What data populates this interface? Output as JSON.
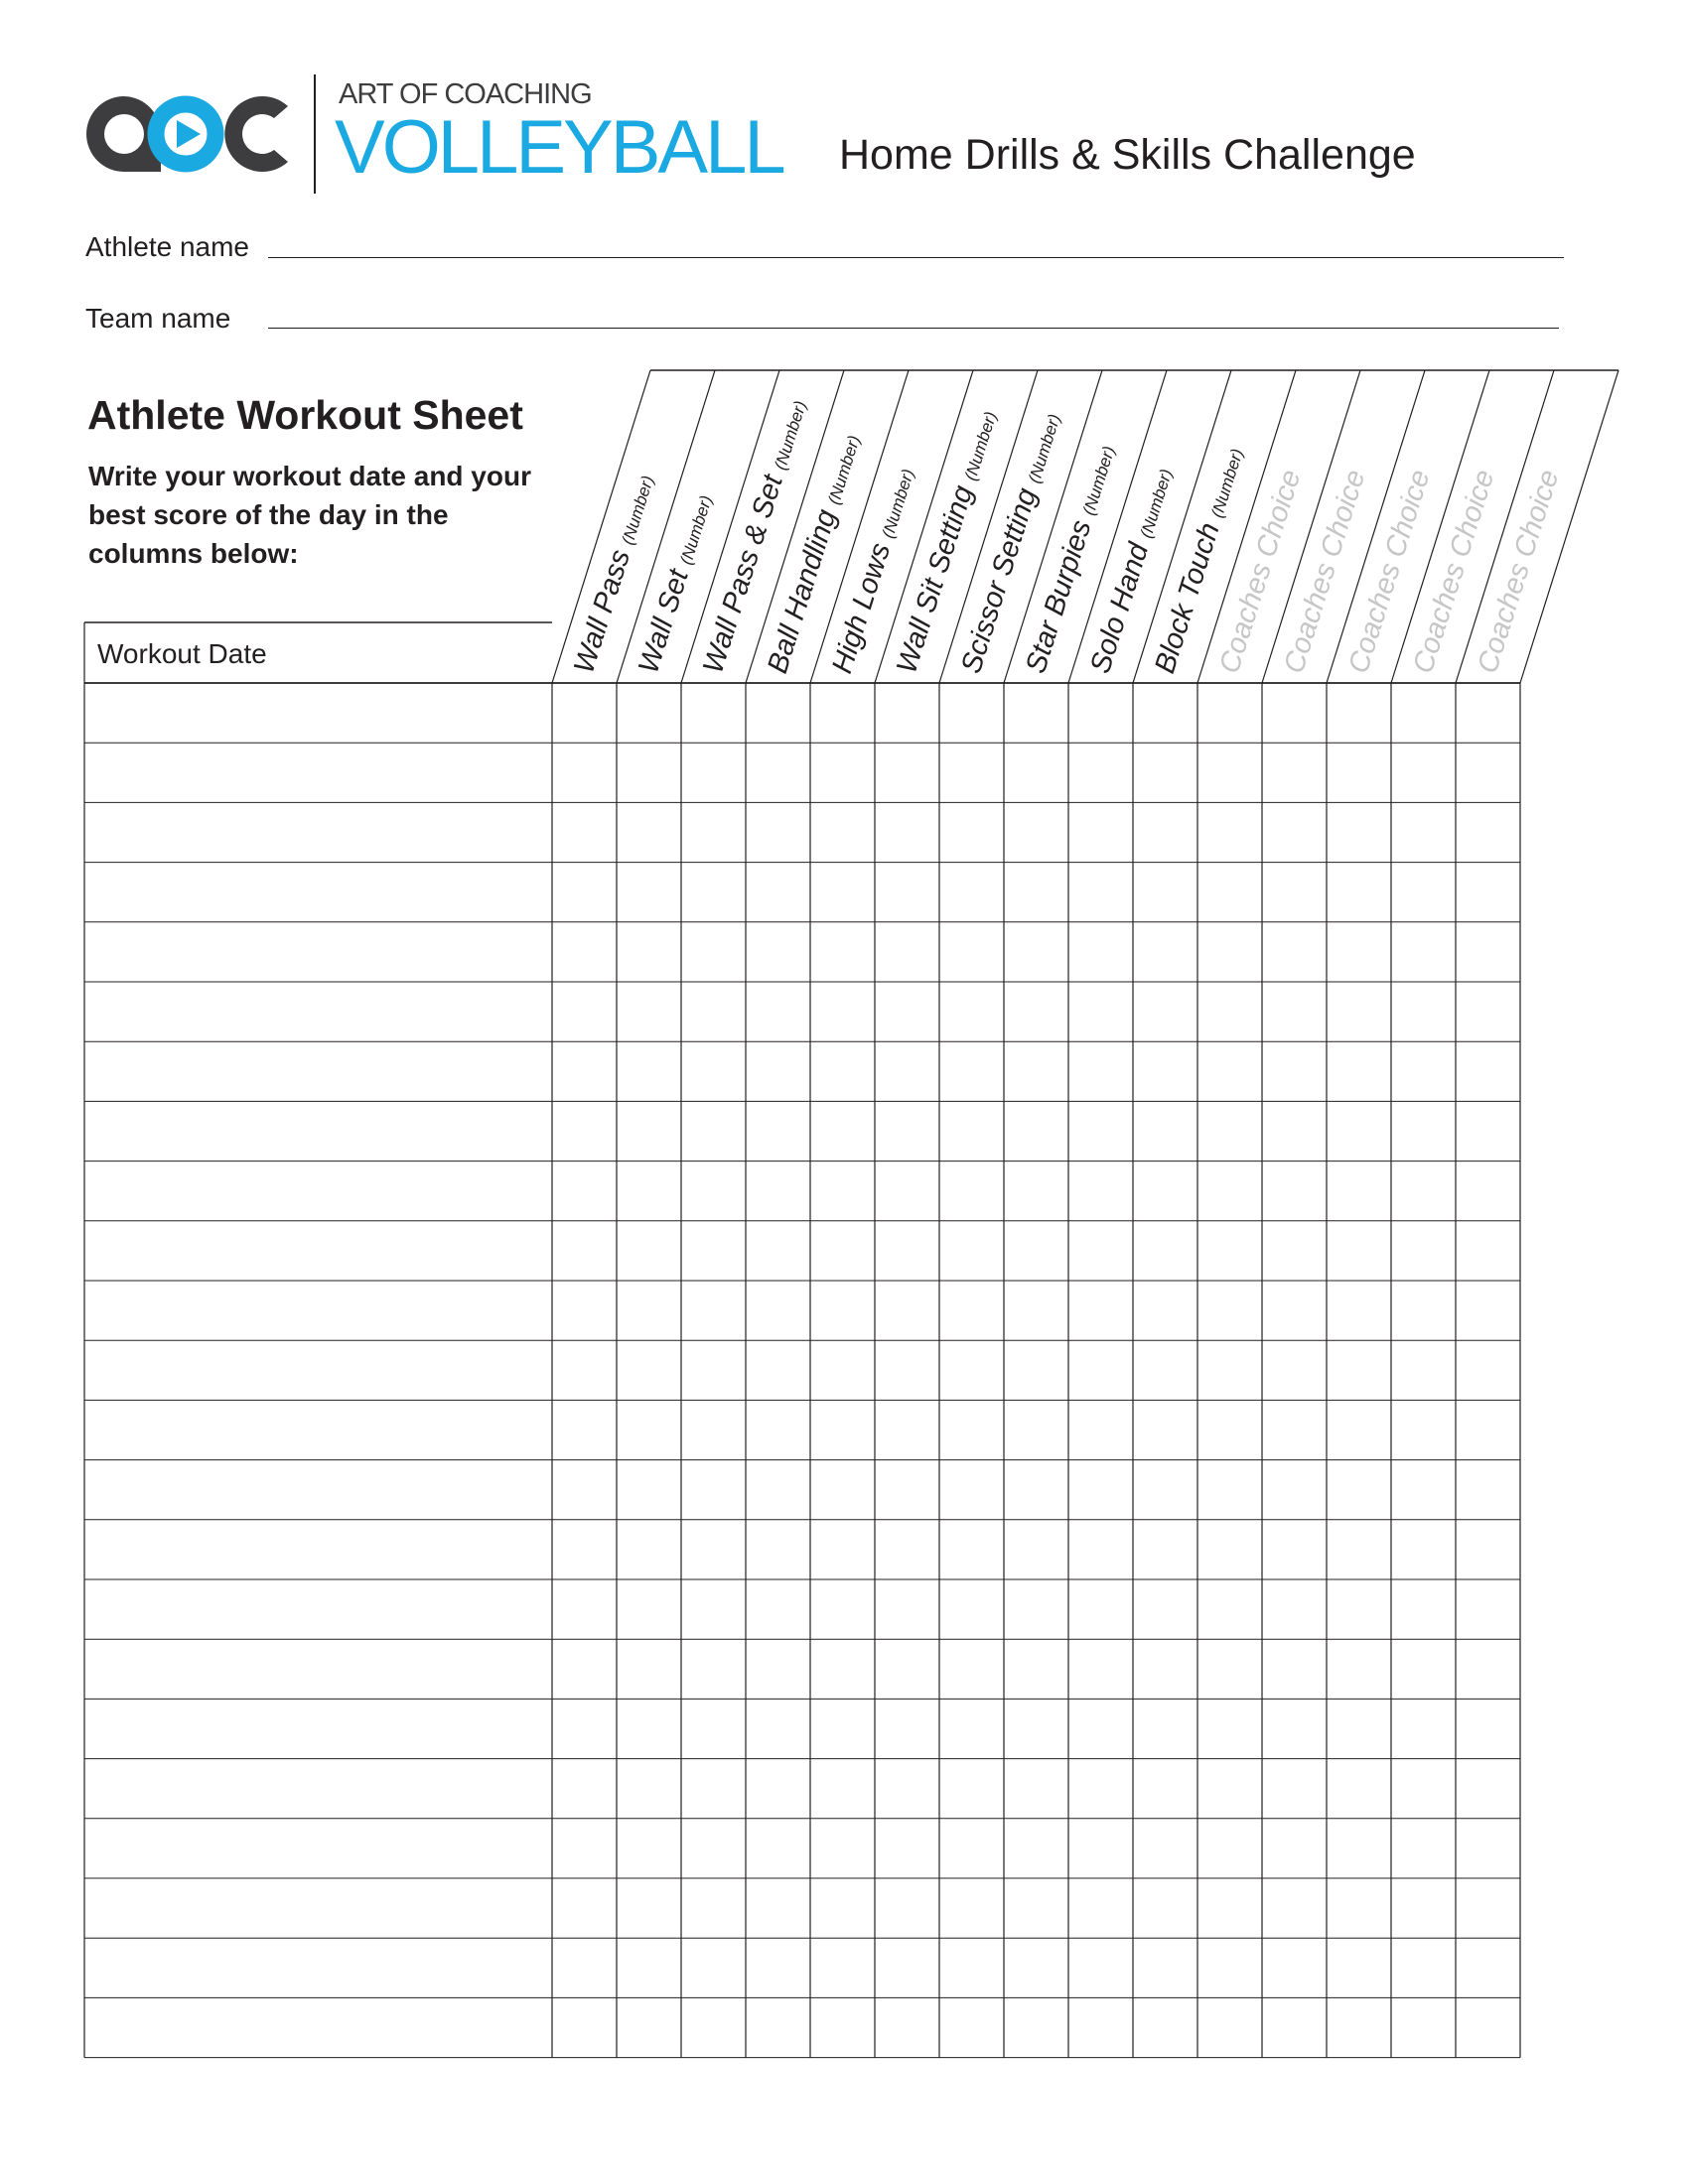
{
  "header": {
    "logo_text": "aoc",
    "brand_top": "ART OF COACHING",
    "brand_main": "VOLLEYBALL",
    "title": "Home Drills & Skills Challenge"
  },
  "fields": {
    "athlete_label": "Athlete name",
    "team_label": "Team  name"
  },
  "sheet": {
    "title": "Athlete Workout Sheet",
    "instructions": "Write your workout date and your best score of the day in the columns below:"
  },
  "table": {
    "date_header": "Workout Date",
    "row_count": 23,
    "columns": [
      {
        "label": "Wall Pass",
        "sub": "(Number)"
      },
      {
        "label": "Wall Set",
        "sub": "(Number)"
      },
      {
        "label": "Wall Pass & Set",
        "sub": "(Number)"
      },
      {
        "label": "Ball Handling",
        "sub": "(Number)"
      },
      {
        "label": "High Lows",
        "sub": "(Number)"
      },
      {
        "label": "Wall Sit Setting",
        "sub": "(Number)"
      },
      {
        "label": "Scissor Setting",
        "sub": "(Number)"
      },
      {
        "label": "Star Burpies",
        "sub": "(Number)"
      },
      {
        "label": "Solo Hand",
        "sub": "(Number)"
      },
      {
        "label": "Block Touch",
        "sub": "(Number)"
      },
      {
        "label": "Coaches Choice",
        "sub": ""
      },
      {
        "label": "Coaches Choice",
        "sub": ""
      },
      {
        "label": "Coaches Choice",
        "sub": ""
      },
      {
        "label": "Coaches Choice",
        "sub": ""
      },
      {
        "label": "Coaches Choice",
        "sub": ""
      }
    ]
  },
  "colors": {
    "brand_blue": "#1ba9e1",
    "brand_dark": "#3d3d3f",
    "placeholder_gray": "#c6c6c6",
    "line": "#231f20"
  }
}
